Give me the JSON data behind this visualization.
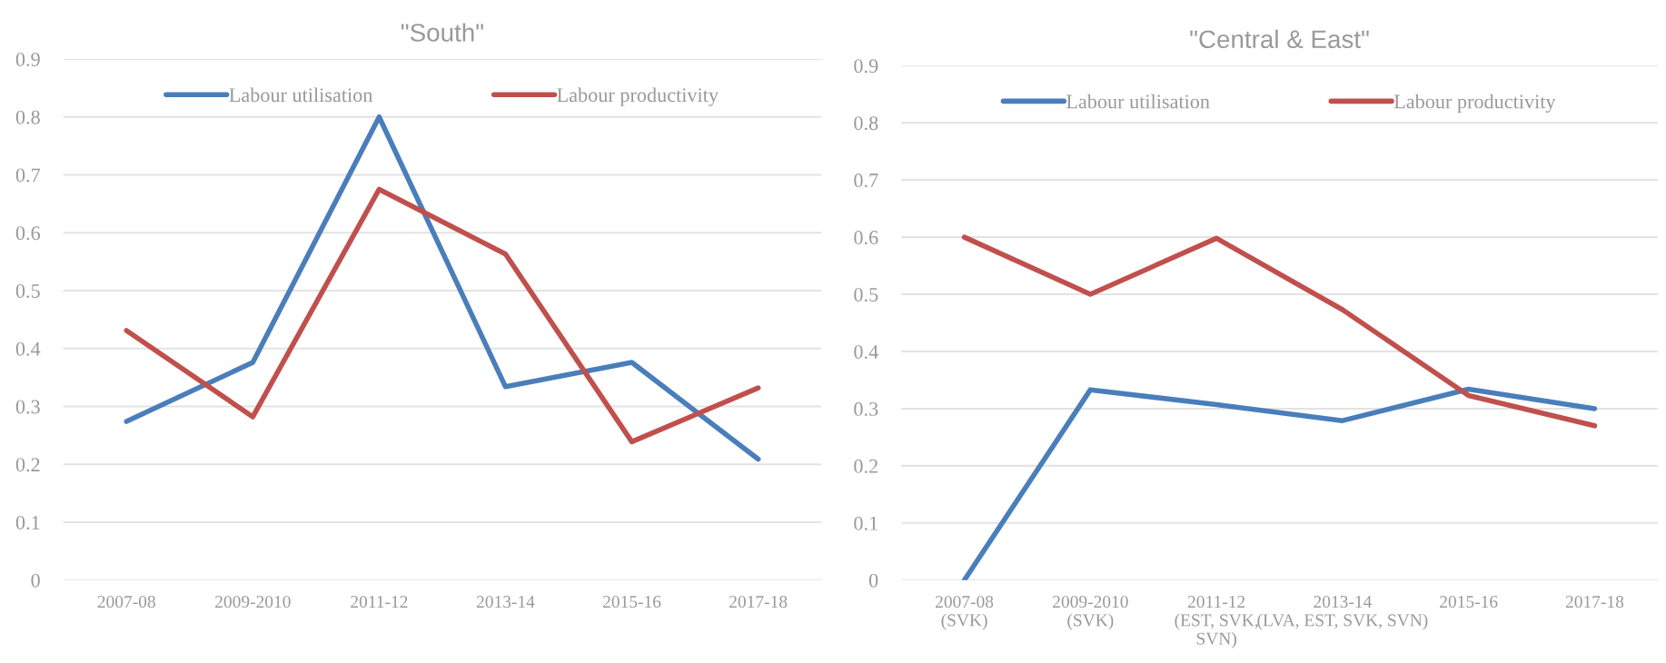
{
  "chart_data": [
    {
      "type": "line",
      "title": "\"South\"",
      "categories": [
        "2007-08",
        "2009-2010",
        "2011-12",
        "2013-14",
        "2015-16",
        "2017-18"
      ],
      "series": [
        {
          "name": "Labour utilisation",
          "color": "#4a7ebb",
          "values": [
            0.274,
            0.376,
            0.8,
            0.334,
            0.376,
            0.209
          ]
        },
        {
          "name": "Labour productivity",
          "color": "#c0504d",
          "values": [
            0.431,
            0.282,
            0.675,
            0.563,
            0.239,
            0.332
          ]
        }
      ],
      "ylim": [
        0,
        0.9
      ],
      "yticks": [
        0,
        0.1,
        0.2,
        0.3,
        0.4,
        0.5,
        0.6,
        0.7,
        0.8,
        0.9
      ],
      "grid": "y",
      "legend": "top",
      "marker": "none",
      "line_style": "solid"
    },
    {
      "type": "line",
      "title": "\"Central & East\"",
      "categories": [
        "2007-08\n(SVK)",
        "2009-2010\n(SVK)",
        "2011-12\n(EST, SVK,\nSVN)",
        "2013-14\n(LVA, EST, SVK, SVN)",
        "2015-16",
        "2017-18"
      ],
      "series": [
        {
          "name": "Labour utilisation",
          "color": "#4a7ebb",
          "values": [
            0,
            0.333,
            0.307,
            0.279,
            0.334,
            0.3
          ]
        },
        {
          "name": "Labour productivity",
          "color": "#c0504d",
          "values": [
            0.6,
            0.5,
            0.598,
            0.473,
            0.323,
            0.27
          ]
        }
      ],
      "ylim": [
        0,
        0.9
      ],
      "yticks": [
        0,
        0.1,
        0.2,
        0.3,
        0.4,
        0.5,
        0.6,
        0.7,
        0.8,
        0.9
      ],
      "grid": "y",
      "legend": "top",
      "marker": "none",
      "line_style": "solid"
    }
  ]
}
